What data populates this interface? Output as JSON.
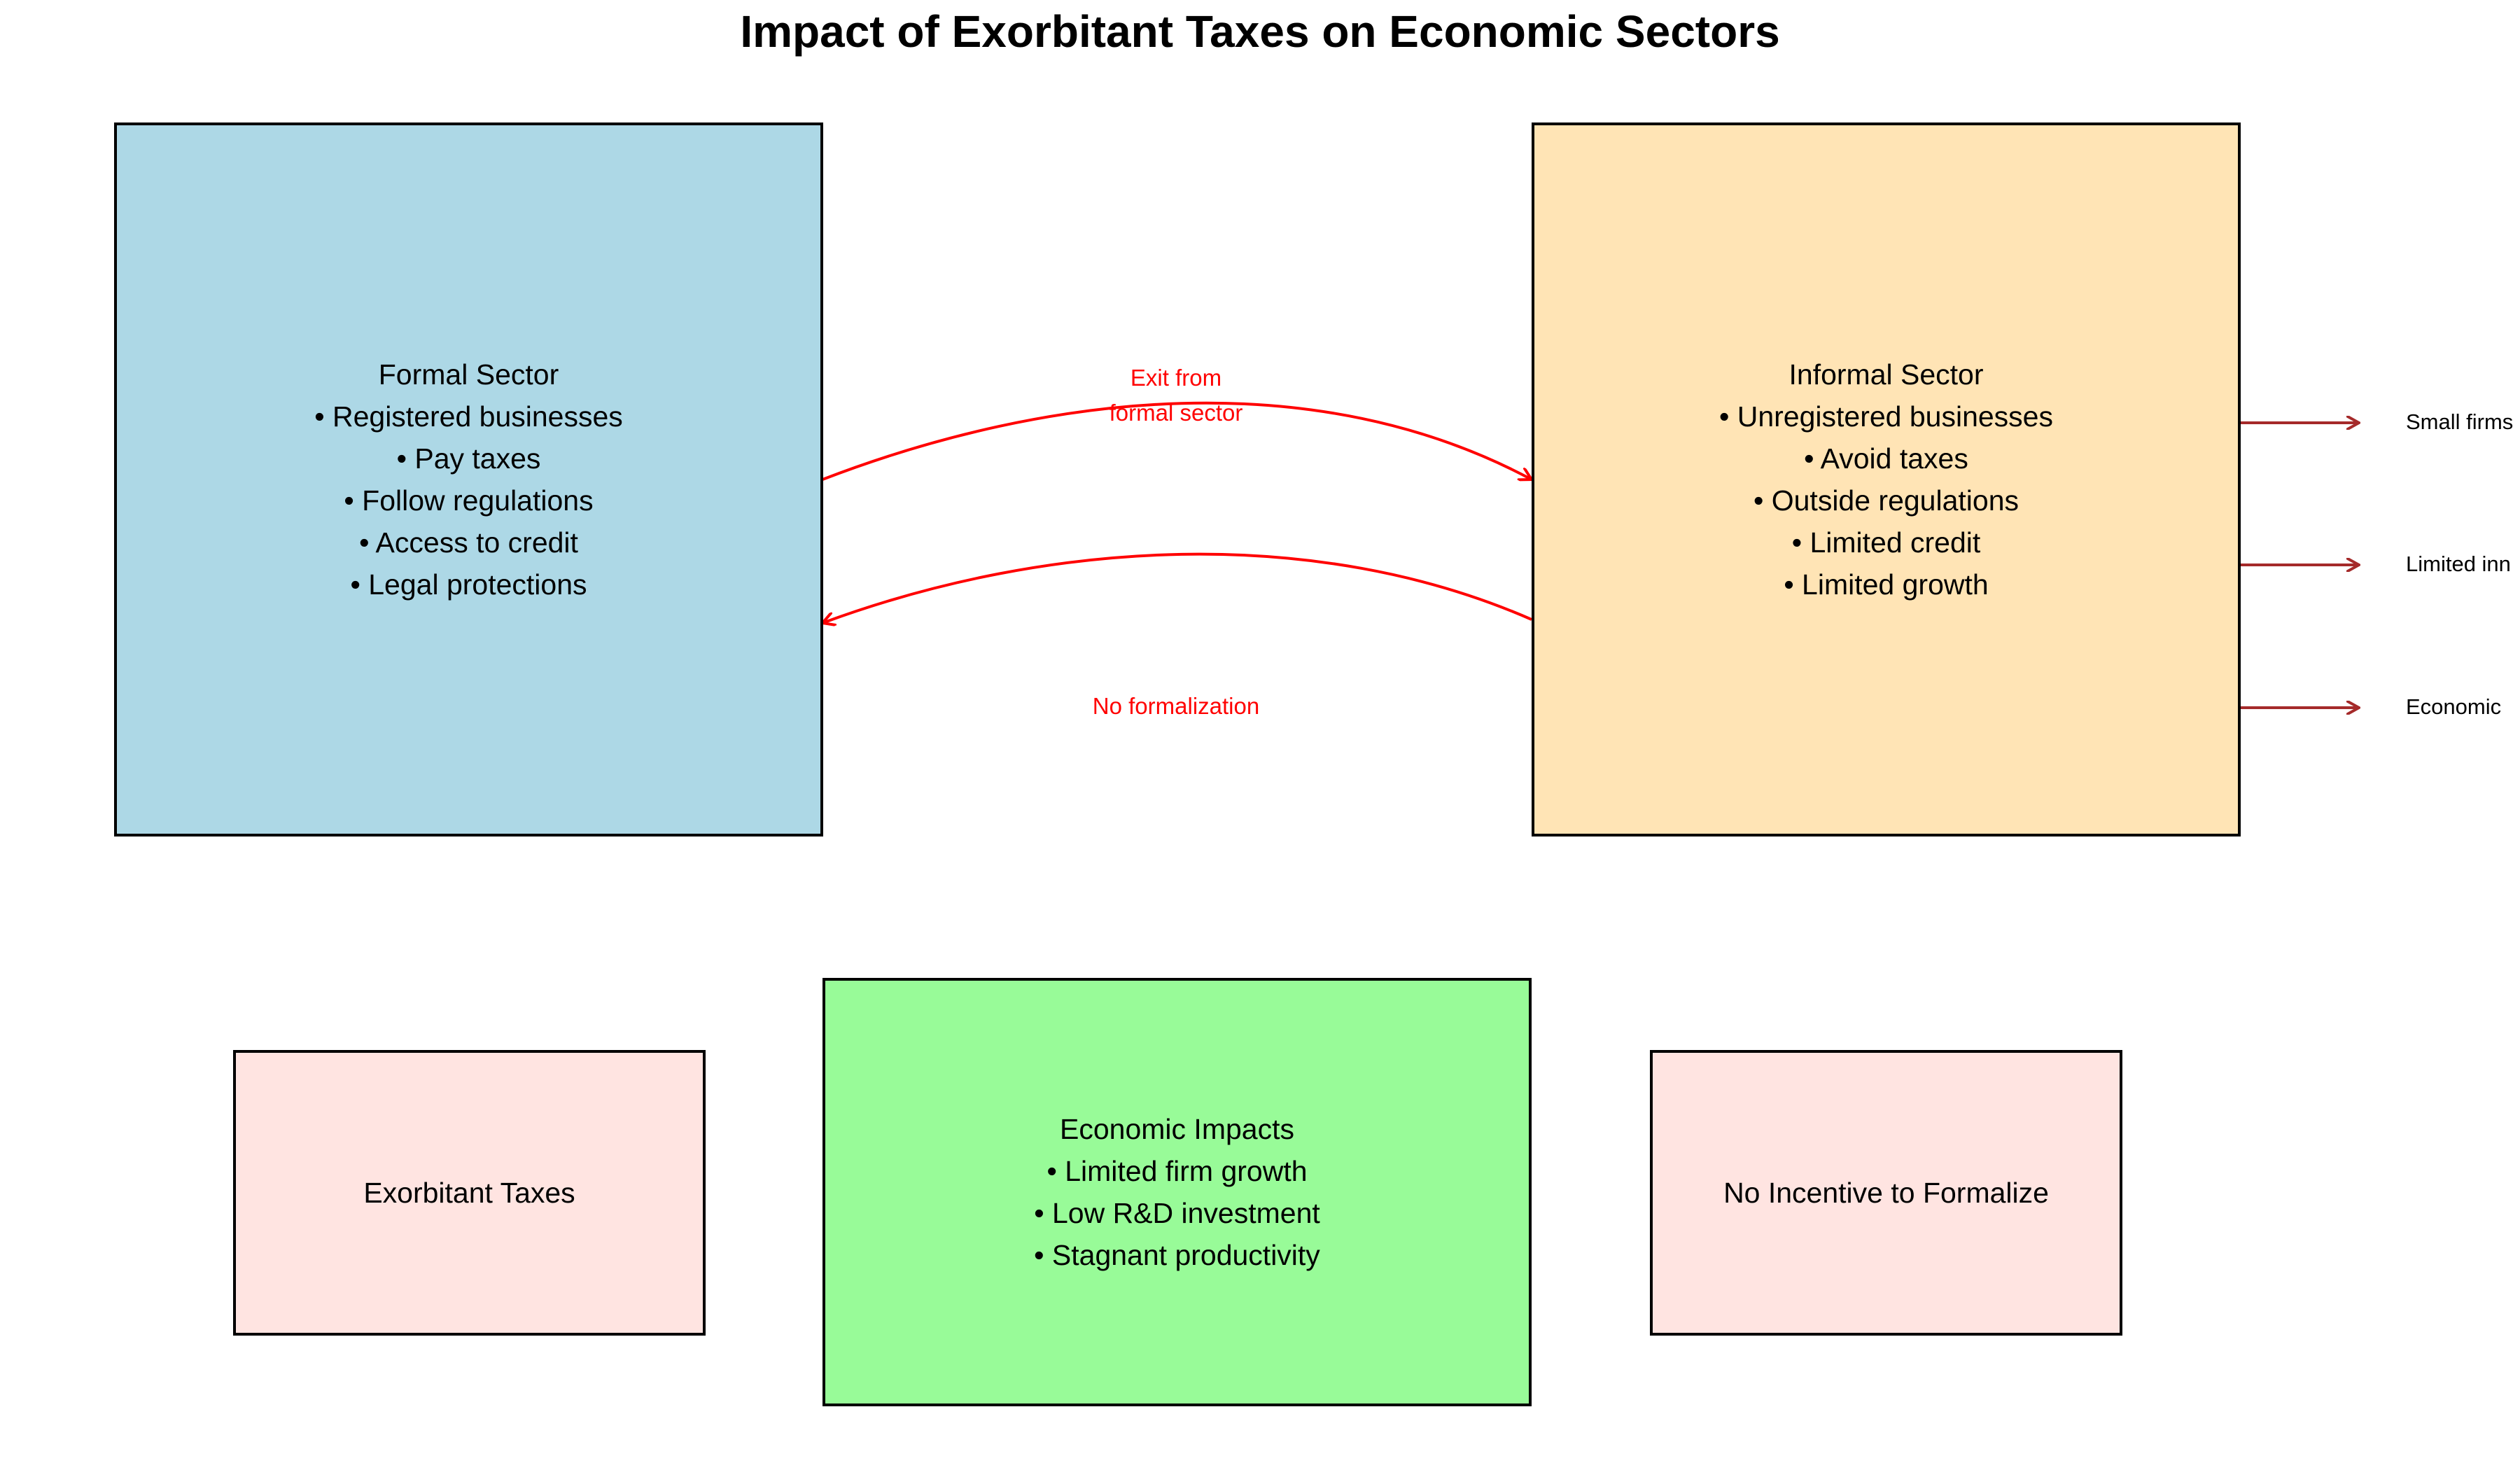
{
  "title": "Impact of Exorbitant Taxes on Economic Sectors",
  "formal": {
    "heading": "Formal Sector",
    "items": [
      "• Registered businesses",
      "• Pay taxes",
      "• Follow regulations",
      "• Access to credit",
      "• Legal protections"
    ],
    "color": "#add8e6"
  },
  "informal": {
    "heading": "Informal Sector",
    "items": [
      "• Unregistered businesses",
      "• Avoid taxes",
      "• Outside regulations",
      "• Limited credit",
      "• Limited growth"
    ],
    "color": "#ffe4b5"
  },
  "impacts": {
    "heading": "Economic Impacts",
    "items": [
      "• Limited firm growth",
      "• Low R&D investment",
      "• Stagnant productivity"
    ],
    "color": "#98fb98"
  },
  "taxes": {
    "label": "Exorbitant Taxes",
    "color": "#ffe4e1"
  },
  "incentive": {
    "label": "No Incentive to Formalize",
    "color": "#ffe4e1"
  },
  "arrows": {
    "exit_line1": "Exit from",
    "exit_line2": "formal sector",
    "no_formalization": "No formalization",
    "color": "#ff0000"
  },
  "side_effects": {
    "items": [
      "Small firms",
      "Limited inn",
      "Economic"
    ],
    "arrow_color": "#a52a2a"
  }
}
